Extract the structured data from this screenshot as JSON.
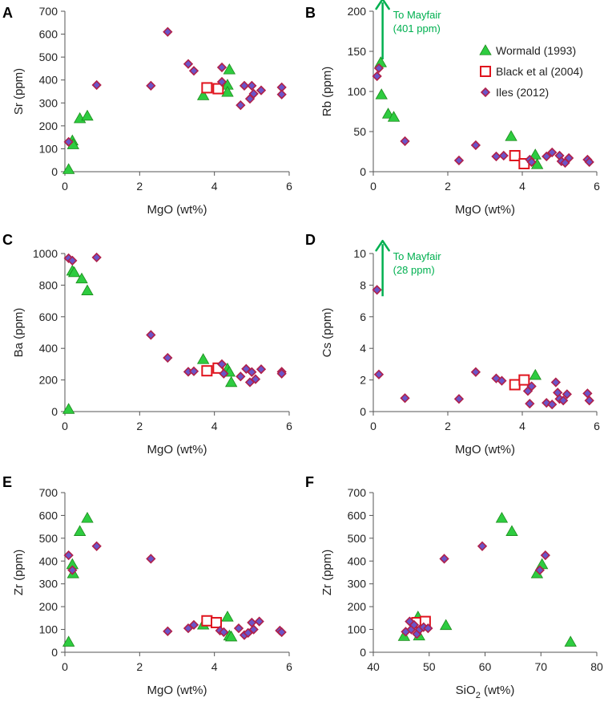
{
  "colors": {
    "wormald_fill": "#2ecc40",
    "wormald_stroke": "#1a8a1a",
    "black_stroke": "#e0141e",
    "iles_fill": "#6a55c9",
    "iles_stroke": "#b0204a",
    "arrow": "#00b050",
    "axis": "#555555"
  },
  "chart_data": [
    {
      "type": "scatter",
      "panel_label": "A",
      "xlabel": "MgO (wt%)",
      "ylabel": "Sr (ppm)",
      "xlim": [
        0,
        6
      ],
      "ylim": [
        0,
        700
      ],
      "xticks": [
        0,
        2,
        4,
        6
      ],
      "yticks": [
        0,
        100,
        200,
        300,
        400,
        500,
        600,
        700
      ],
      "series": [
        {
          "name": "Wormald (1993)",
          "marker": "triangle",
          "points": [
            [
              0.1,
              10
            ],
            [
              0.2,
              135
            ],
            [
              0.22,
              118
            ],
            [
              0.4,
              232
            ],
            [
              0.6,
              243
            ],
            [
              3.7,
              332
            ],
            [
              4.4,
              445
            ],
            [
              4.35,
              378
            ],
            [
              4.35,
              347
            ]
          ]
        },
        {
          "name": "Black et al (2004)",
          "marker": "square",
          "points": [
            [
              3.8,
              366
            ],
            [
              4.1,
              362
            ]
          ]
        },
        {
          "name": "Iles (2012)",
          "marker": "diamond",
          "points": [
            [
              0.1,
              130
            ],
            [
              0.85,
              378
            ],
            [
              2.3,
              375
            ],
            [
              2.75,
              610
            ],
            [
              3.3,
              470
            ],
            [
              3.45,
              440
            ],
            [
              4.2,
              455
            ],
            [
              4.2,
              392
            ],
            [
              4.7,
              290
            ],
            [
              4.8,
              375
            ],
            [
              4.95,
              318
            ],
            [
              5.0,
              375
            ],
            [
              5.05,
              340
            ],
            [
              5.25,
              355
            ],
            [
              5.8,
              368
            ],
            [
              5.8,
              337
            ]
          ]
        }
      ]
    },
    {
      "type": "scatter",
      "panel_label": "B",
      "xlabel": "MgO (wt%)",
      "ylabel": "Rb (ppm)",
      "xlim": [
        0,
        6
      ],
      "ylim": [
        0,
        200
      ],
      "xticks": [
        0,
        2,
        4,
        6
      ],
      "yticks": [
        0,
        50,
        100,
        150,
        200
      ],
      "annotation": {
        "text_lines": [
          "To Mayfair",
          "(401 ppm)"
        ],
        "x": 0.25,
        "y_from": 140,
        "y_to": 215
      },
      "legend": {
        "position": "top-right",
        "entries": [
          "Wormald (1993)",
          "Black et al (2004)",
          "Iles (2012)"
        ]
      },
      "series": [
        {
          "name": "Wormald (1993)",
          "marker": "triangle",
          "points": [
            [
              0.2,
              136
            ],
            [
              0.22,
              96
            ],
            [
              0.4,
              72
            ],
            [
              0.55,
              68
            ],
            [
              3.7,
              44
            ],
            [
              4.35,
              21
            ],
            [
              4.4,
              9
            ]
          ]
        },
        {
          "name": "Black et al (2004)",
          "marker": "square",
          "points": [
            [
              3.8,
              20
            ],
            [
              4.05,
              10
            ]
          ]
        },
        {
          "name": "Iles (2012)",
          "marker": "diamond",
          "points": [
            [
              0.1,
              119
            ],
            [
              0.15,
              129
            ],
            [
              0.85,
              38
            ],
            [
              2.3,
              14
            ],
            [
              2.75,
              33
            ],
            [
              3.3,
              19
            ],
            [
              3.5,
              20
            ],
            [
              4.2,
              15
            ],
            [
              4.25,
              12
            ],
            [
              4.65,
              19
            ],
            [
              4.8,
              24
            ],
            [
              5.0,
              20
            ],
            [
              5.05,
              13
            ],
            [
              5.15,
              11
            ],
            [
              5.25,
              17
            ],
            [
              5.75,
              15
            ],
            [
              5.8,
              12
            ]
          ]
        }
      ]
    },
    {
      "type": "scatter",
      "panel_label": "C",
      "xlabel": "MgO (wt%)",
      "ylabel": "Ba (ppm)",
      "xlim": [
        0,
        6
      ],
      "ylim": [
        0,
        1000
      ],
      "xticks": [
        0,
        2,
        4,
        6
      ],
      "yticks": [
        0,
        200,
        400,
        600,
        800,
        1000
      ],
      "series": [
        {
          "name": "Wormald (1993)",
          "marker": "triangle",
          "points": [
            [
              0.1,
              15
            ],
            [
              0.2,
              890
            ],
            [
              0.25,
              880
            ],
            [
              0.45,
              840
            ],
            [
              0.6,
              765
            ],
            [
              3.7,
              330
            ],
            [
              4.35,
              270
            ],
            [
              4.4,
              250
            ],
            [
              4.45,
              185
            ]
          ]
        },
        {
          "name": "Black et al (2004)",
          "marker": "square",
          "points": [
            [
              3.8,
              258
            ],
            [
              4.1,
              275
            ]
          ]
        },
        {
          "name": "Iles (2012)",
          "marker": "diamond",
          "points": [
            [
              0.1,
              970
            ],
            [
              0.2,
              955
            ],
            [
              0.85,
              975
            ],
            [
              2.3,
              485
            ],
            [
              2.75,
              340
            ],
            [
              3.3,
              252
            ],
            [
              3.45,
              255
            ],
            [
              4.2,
              300
            ],
            [
              4.25,
              240
            ],
            [
              4.7,
              222
            ],
            [
              4.85,
              270
            ],
            [
              4.95,
              185
            ],
            [
              5.0,
              250
            ],
            [
              5.1,
              205
            ],
            [
              5.25,
              268
            ],
            [
              5.8,
              252
            ],
            [
              5.8,
              240
            ]
          ]
        }
      ]
    },
    {
      "type": "scatter",
      "panel_label": "D",
      "xlabel": "MgO (wt%)",
      "ylabel": "Cs (ppm)",
      "xlim": [
        0,
        6
      ],
      "ylim": [
        0,
        10
      ],
      "xticks": [
        0,
        2,
        4,
        6
      ],
      "yticks": [
        0,
        2,
        4,
        6,
        8,
        10
      ],
      "annotation": {
        "text_lines": [
          "To Mayfair",
          "(28 ppm)"
        ],
        "x": 0.25,
        "y_from": 7.3,
        "y_to": 10.8
      },
      "series": [
        {
          "name": "Wormald (1993)",
          "marker": "triangle",
          "points": [
            [
              4.35,
              2.3
            ]
          ]
        },
        {
          "name": "Black et al (2004)",
          "marker": "square",
          "points": [
            [
              3.8,
              1.7
            ],
            [
              4.05,
              2.0
            ]
          ]
        },
        {
          "name": "Iles (2012)",
          "marker": "diamond",
          "points": [
            [
              0.1,
              7.7
            ],
            [
              0.15,
              2.35
            ],
            [
              0.85,
              0.85
            ],
            [
              2.3,
              0.8
            ],
            [
              2.75,
              2.5
            ],
            [
              3.3,
              2.1
            ],
            [
              3.45,
              1.95
            ],
            [
              4.15,
              1.3
            ],
            [
              4.2,
              0.5
            ],
            [
              4.25,
              1.6
            ],
            [
              4.65,
              0.55
            ],
            [
              4.8,
              0.45
            ],
            [
              4.9,
              1.85
            ],
            [
              4.95,
              1.2
            ],
            [
              5.0,
              0.8
            ],
            [
              5.1,
              0.7
            ],
            [
              5.2,
              1.1
            ],
            [
              5.75,
              1.15
            ],
            [
              5.8,
              0.7
            ]
          ]
        }
      ]
    },
    {
      "type": "scatter",
      "panel_label": "E",
      "xlabel": "MgO (wt%)",
      "ylabel": "Zr (ppm)",
      "xlim": [
        0,
        6
      ],
      "ylim": [
        0,
        700
      ],
      "xticks": [
        0,
        2,
        4,
        6
      ],
      "yticks": [
        0,
        100,
        200,
        300,
        400,
        500,
        600,
        700
      ],
      "series": [
        {
          "name": "Wormald (1993)",
          "marker": "triangle",
          "points": [
            [
              0.1,
              45
            ],
            [
              0.2,
              385
            ],
            [
              0.22,
              345
            ],
            [
              0.4,
              530
            ],
            [
              0.6,
              588
            ],
            [
              3.7,
              120
            ],
            [
              4.35,
              155
            ],
            [
              4.4,
              72
            ],
            [
              4.45,
              68
            ]
          ]
        },
        {
          "name": "Black et al (2004)",
          "marker": "square",
          "points": [
            [
              3.8,
              138
            ],
            [
              4.05,
              130
            ]
          ]
        },
        {
          "name": "Iles (2012)",
          "marker": "diamond",
          "points": [
            [
              0.1,
              425
            ],
            [
              0.2,
              360
            ],
            [
              0.85,
              465
            ],
            [
              2.3,
              410
            ],
            [
              2.75,
              92
            ],
            [
              3.3,
              105
            ],
            [
              3.45,
              120
            ],
            [
              4.15,
              95
            ],
            [
              4.25,
              88
            ],
            [
              4.65,
              105
            ],
            [
              4.8,
              75
            ],
            [
              4.9,
              85
            ],
            [
              5.0,
              130
            ],
            [
              5.05,
              100
            ],
            [
              5.2,
              135
            ],
            [
              5.75,
              95
            ],
            [
              5.8,
              88
            ]
          ]
        }
      ]
    },
    {
      "type": "scatter",
      "panel_label": "F",
      "xlabel": "SiO2 (wt%)",
      "xlabel_base": "SiO",
      "xlabel_sub": "2",
      "xlabel_tail": " (wt%)",
      "ylabel": "Zr (ppm)",
      "xlim": [
        40,
        80
      ],
      "ylim": [
        0,
        700
      ],
      "xticks": [
        40,
        50,
        60,
        70,
        80
      ],
      "yticks": [
        0,
        100,
        200,
        300,
        400,
        500,
        600,
        700
      ],
      "series": [
        {
          "name": "Wormald (1993)",
          "marker": "triangle",
          "points": [
            [
              45.5,
              70
            ],
            [
              48,
              155
            ],
            [
              48.2,
              72
            ],
            [
              53,
              118
            ],
            [
              63,
              588
            ],
            [
              64.8,
              530
            ],
            [
              69.3,
              345
            ],
            [
              70.2,
              385
            ],
            [
              75.3,
              45
            ]
          ]
        },
        {
          "name": "Black et al (2004)",
          "marker": "square",
          "points": [
            [
              47.8,
              130
            ],
            [
              49.3,
              135
            ]
          ]
        },
        {
          "name": "Iles (2012)",
          "marker": "diamond",
          "points": [
            [
              45.8,
              90
            ],
            [
              46.5,
              135
            ],
            [
              46.8,
              100
            ],
            [
              47.3,
              120
            ],
            [
              47.8,
              80
            ],
            [
              48.3,
              100
            ],
            [
              49,
              110
            ],
            [
              49.8,
              105
            ],
            [
              52.7,
              410
            ],
            [
              59.5,
              465
            ],
            [
              69.8,
              360
            ],
            [
              70.8,
              425
            ]
          ]
        }
      ]
    }
  ]
}
